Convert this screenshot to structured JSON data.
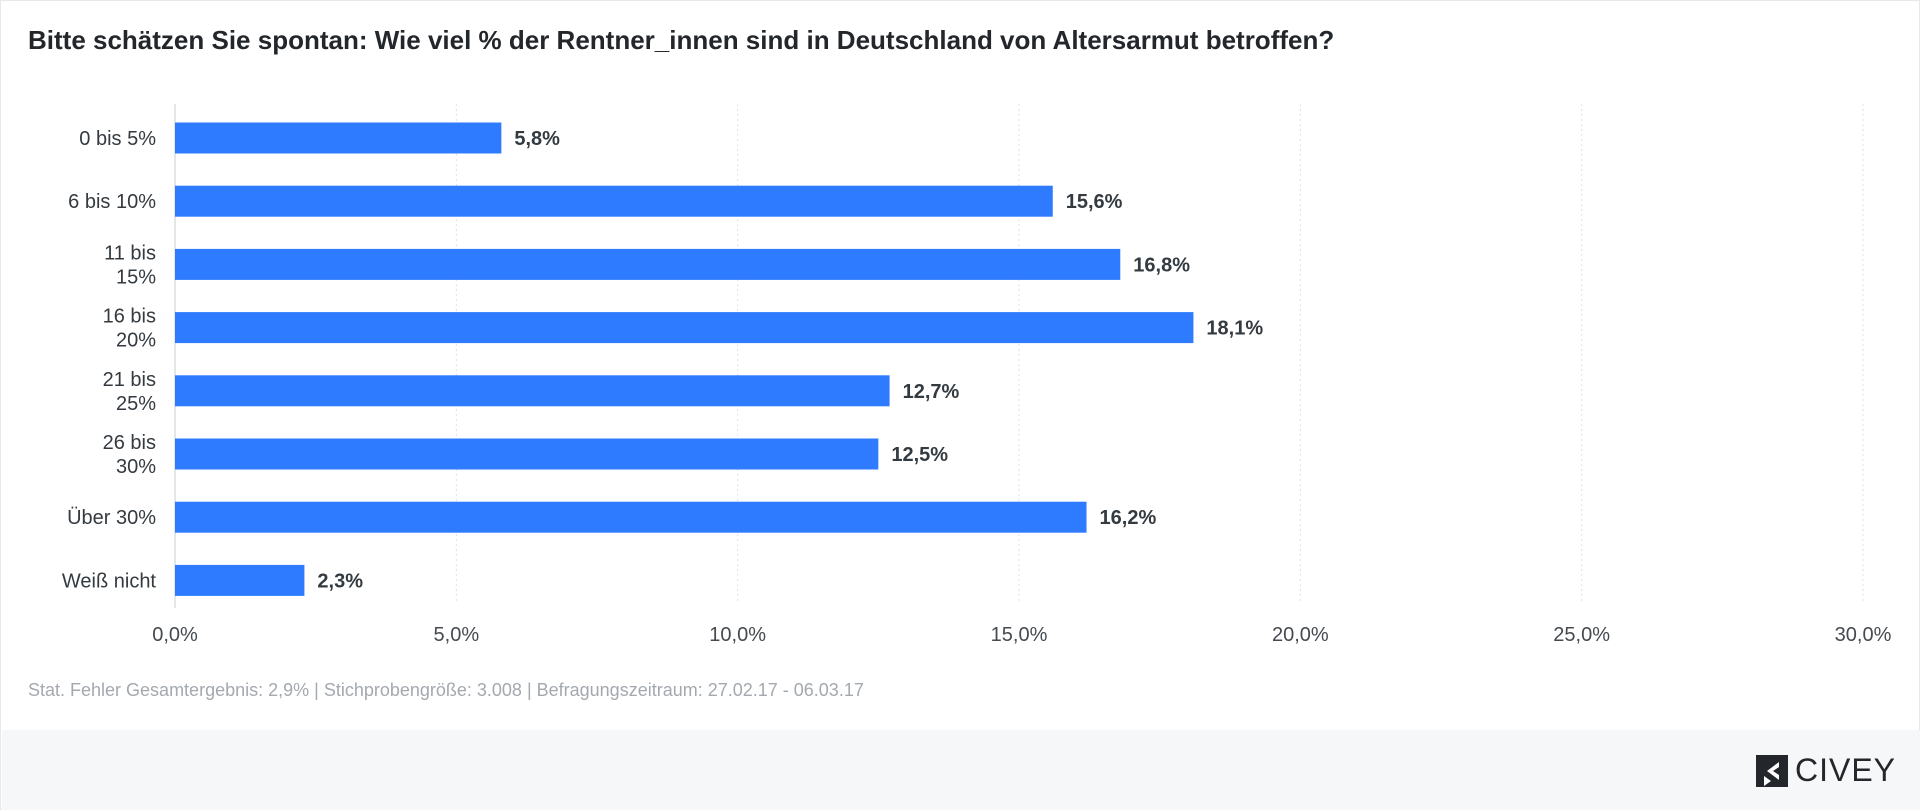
{
  "title": "Bitte schätzen Sie spontan: Wie viel % der Rentner_innen sind in Deutschland von Altersarmut betroffen?",
  "footnote": "Stat. Fehler Gesamtergebnis: 2,9% | Stichprobengröße: 3.008 | Befragungszeitraum: 27.02.17 - 06.03.17",
  "brand": {
    "name": "CIVEY",
    "icon": "civey-logo-icon"
  },
  "colors": {
    "bar": "#2e7bff",
    "grid": "#dde1e5",
    "axis": "#444a50",
    "label": "#333a40"
  },
  "chart_data": {
    "type": "bar",
    "orientation": "horizontal",
    "title": "Bitte schätzen Sie spontan: Wie viel % der Rentner_innen sind in Deutschland von Altersarmut betroffen?",
    "categories": [
      [
        "0 bis 5%"
      ],
      [
        "6 bis 10%"
      ],
      [
        "11 bis",
        "15%"
      ],
      [
        "16 bis",
        "20%"
      ],
      [
        "21 bis",
        "25%"
      ],
      [
        "26 bis",
        "30%"
      ],
      [
        "Über 30%"
      ],
      [
        "Weiß nicht"
      ]
    ],
    "values": [
      5.8,
      15.6,
      16.8,
      18.1,
      12.7,
      12.5,
      16.2,
      2.3
    ],
    "value_labels": [
      "5,8%",
      "15,6%",
      "16,8%",
      "18,1%",
      "12,7%",
      "12,5%",
      "16,2%",
      "2,3%"
    ],
    "xlim": [
      0,
      30
    ],
    "xticks": [
      0,
      5,
      10,
      15,
      20,
      25,
      30
    ],
    "xtick_labels": [
      "0,0%",
      "5,0%",
      "10,0%",
      "15,0%",
      "20,0%",
      "25,0%",
      "30,0%"
    ],
    "grid": "vertical-dotted",
    "legend": "none"
  }
}
